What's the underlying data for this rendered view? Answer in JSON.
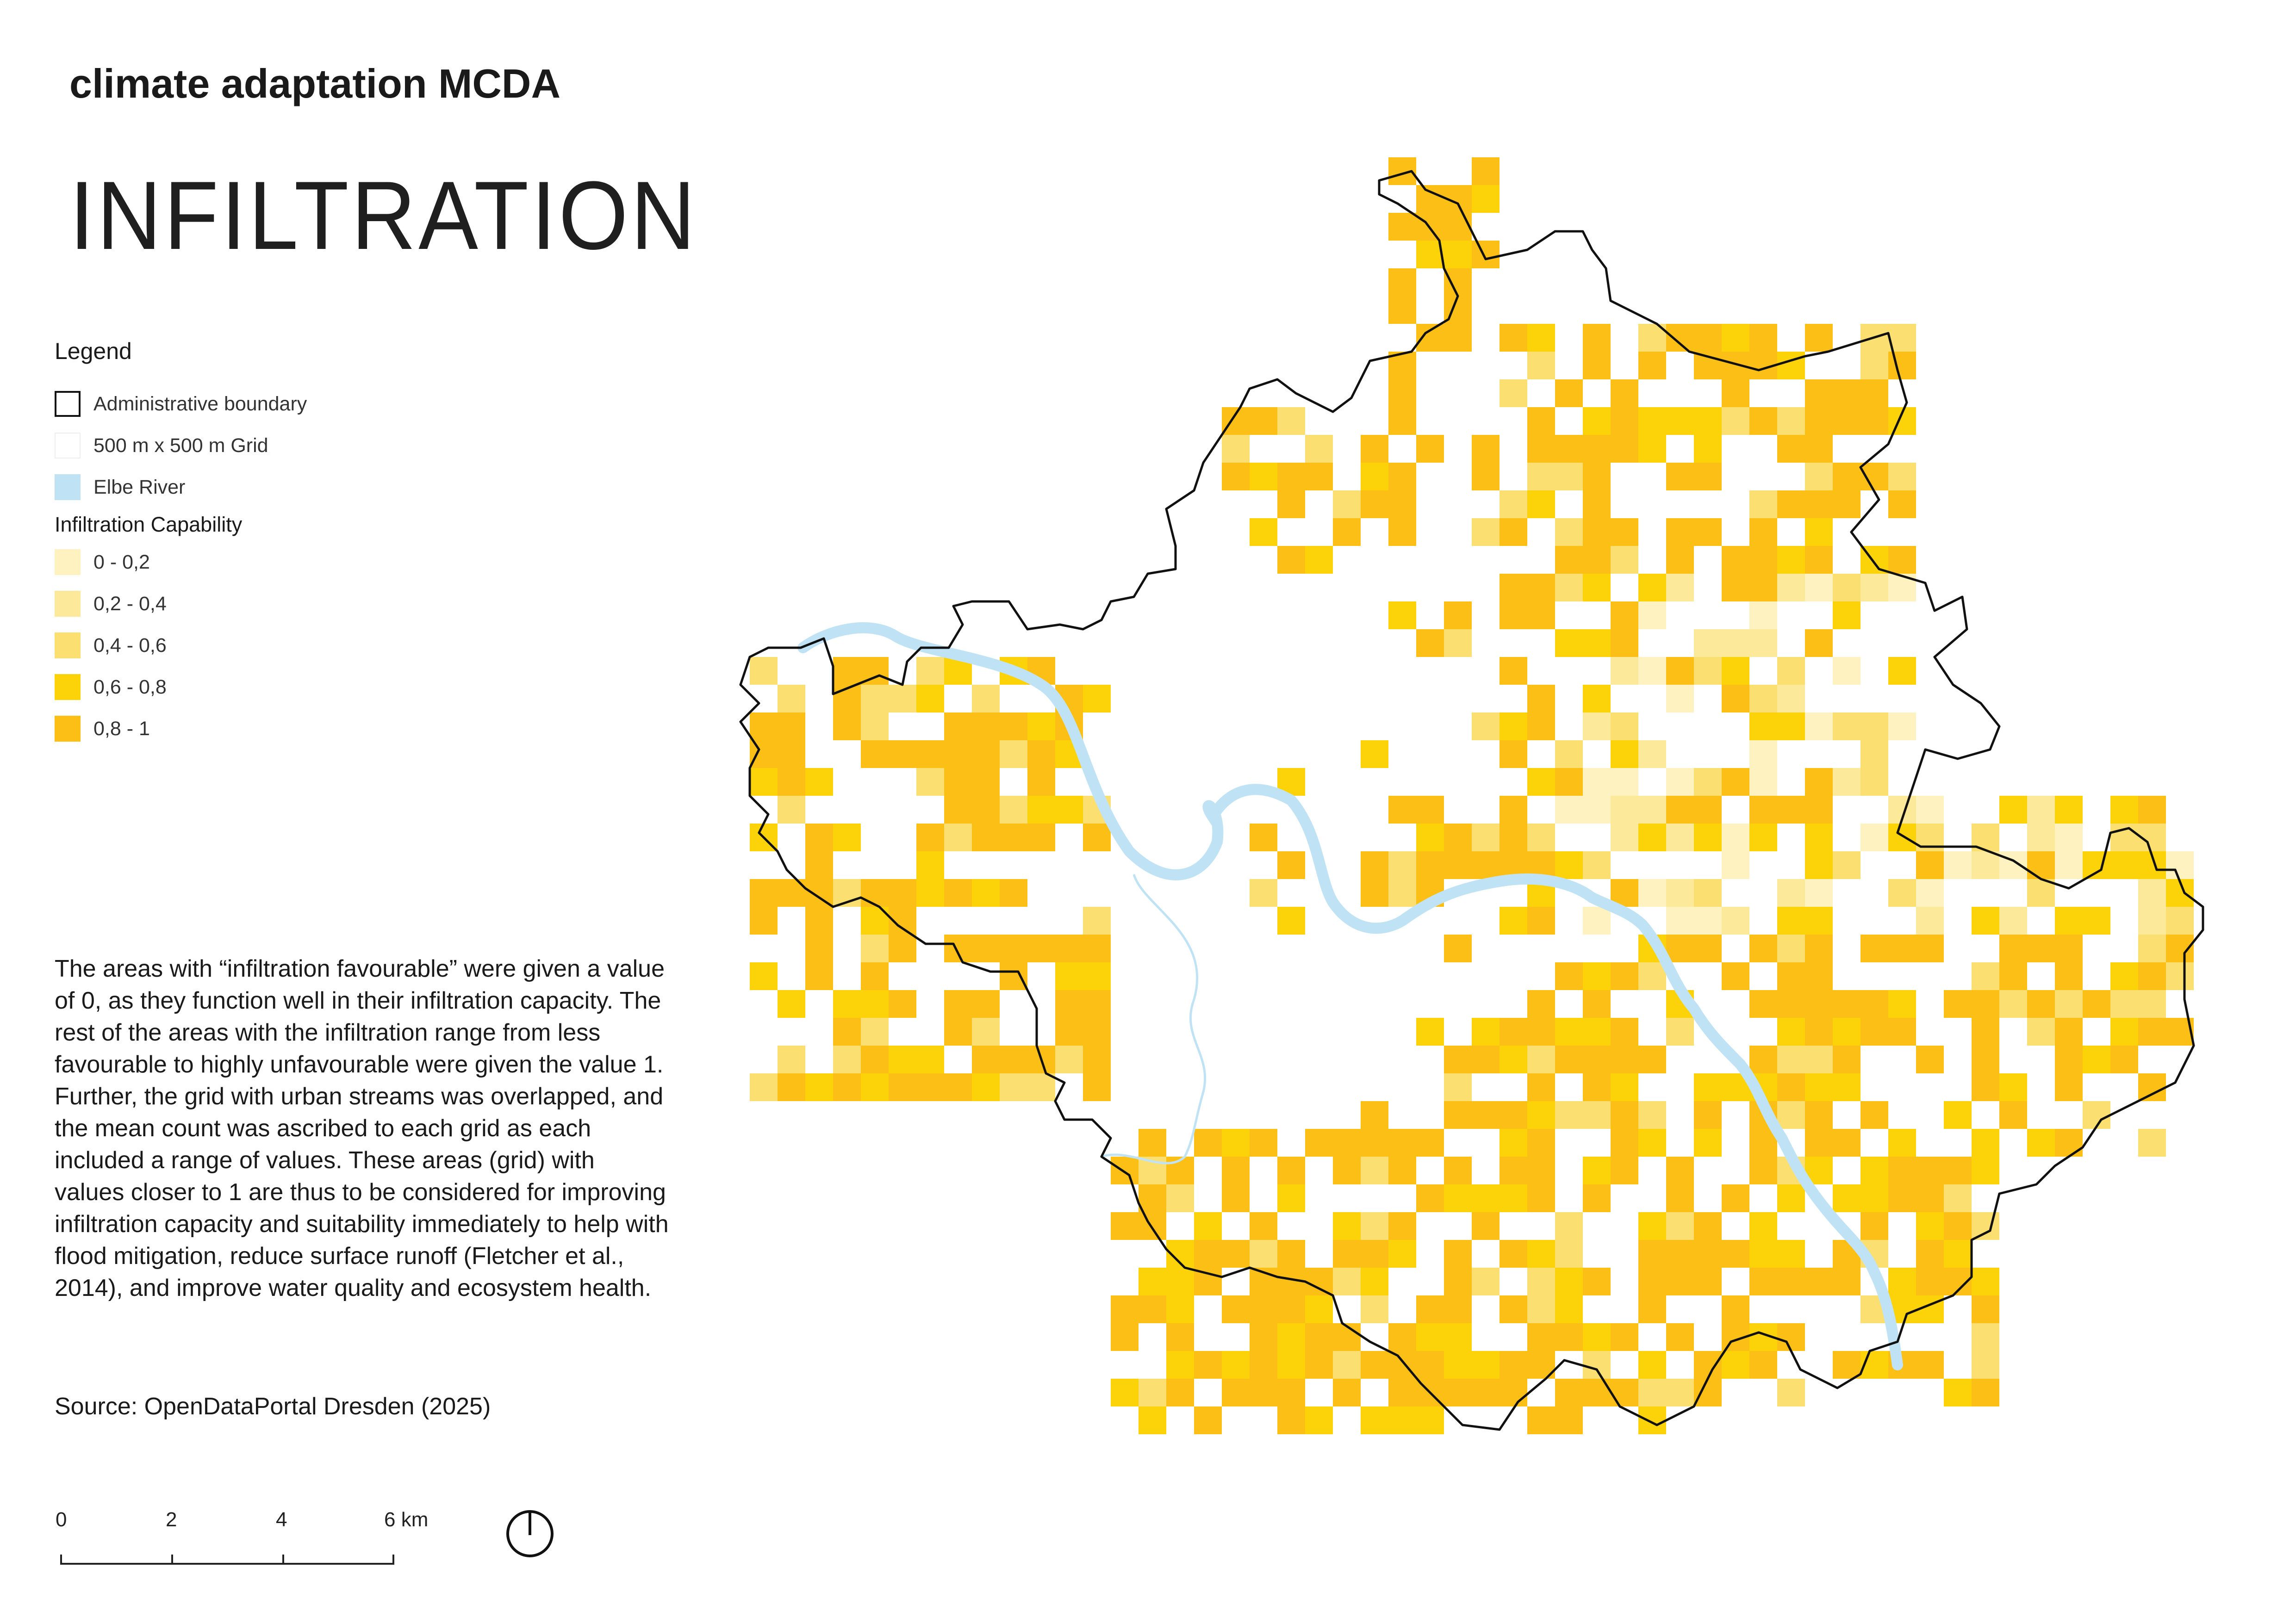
{
  "header": {
    "subtitle": "climate adaptation MCDA",
    "title": "INFILTRATION"
  },
  "legend": {
    "heading": "Legend",
    "items": [
      {
        "label": "Administrative boundary",
        "icon": "boundary-swatch"
      },
      {
        "label": "500 m x 500 m Grid",
        "icon": "grid-swatch"
      },
      {
        "label": "Elbe River",
        "icon": "river-swatch",
        "color": "#bfe3f5"
      }
    ],
    "capability_heading": "Infiltration Capability",
    "classes": [
      {
        "label": "0 - 0,2",
        "color": "#fdf2c0"
      },
      {
        "label": "0,2 - 0,4",
        "color": "#fce99a"
      },
      {
        "label": "0,4 - 0,6",
        "color": "#fbe071"
      },
      {
        "label": "0,6 - 0,8",
        "color": "#fbd308"
      },
      {
        "label": "0,8 - 1",
        "color": "#fbbf16"
      }
    ]
  },
  "description": "The areas with “infiltration favourable” were given a value of 0, as they function well in their infiltration capacity. The rest of the areas with the infiltration range from less favourable to highly unfavourable were given the value 1. Further, the grid with urban streams was overlapped, and the mean count was ascribed to each grid as each included a range of values. These areas (grid) with values closer to 1 are thus to be considered for improving infiltration capacity and suitability immediately to help with flood mitigation, reduce surface runoff (Fletcher et al., 2014), and improve water quality and ecosystem health.",
  "source": "Source: OpenDataPortal Dresden (2025)",
  "scalebar": {
    "labels": [
      "0",
      "2",
      "4",
      "6 km"
    ]
  },
  "north_arrow": {
    "icon": "north-arrow-icon"
  }
}
